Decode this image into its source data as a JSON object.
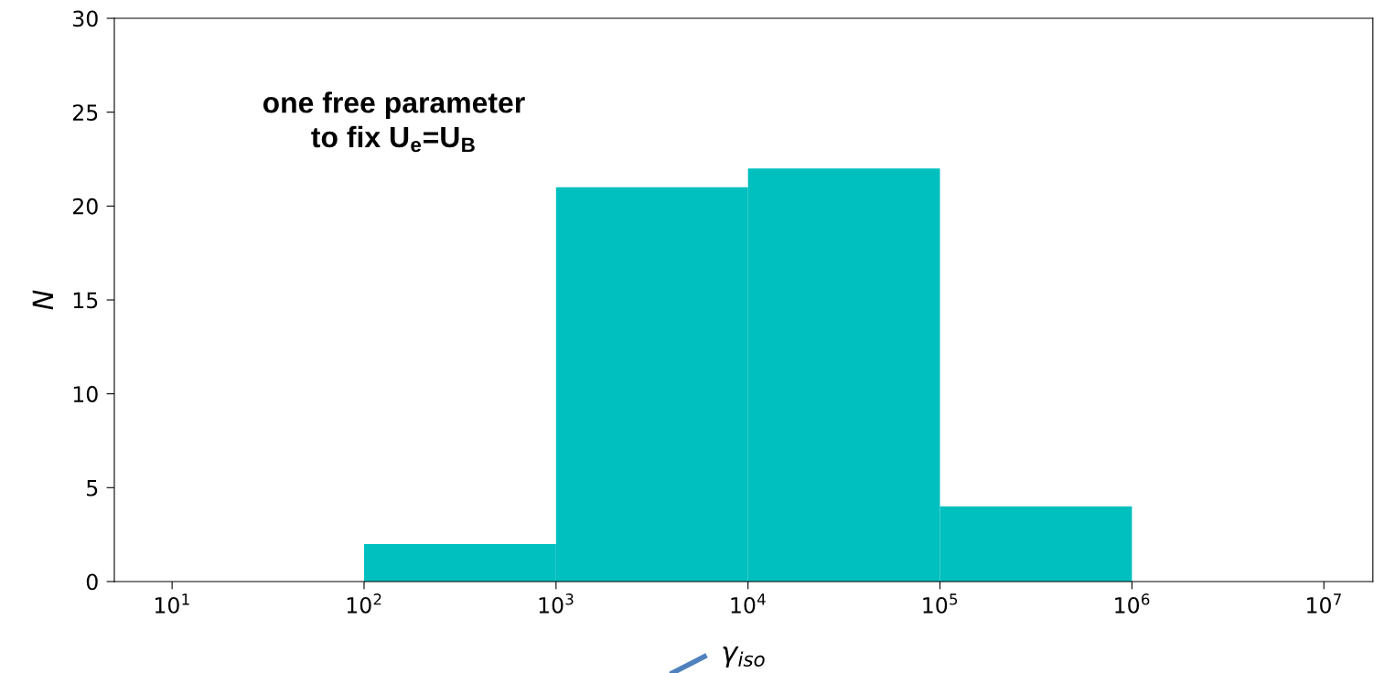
{
  "chart_data": {
    "type": "histogram",
    "bins": [
      100,
      1000,
      10000,
      100000,
      1000000
    ],
    "values": [
      2,
      21,
      22,
      4
    ],
    "color": "#00bfbf",
    "log": "x",
    "xlim": [
      5,
      18000000
    ],
    "xticks": [
      {
        "value": 10,
        "label": "10$^{1}$"
      },
      {
        "value": 100,
        "label": "10$^{2}$"
      },
      {
        "value": 1000,
        "label": "10$^{3}$"
      },
      {
        "value": 10000,
        "label": "10$^{4}$"
      },
      {
        "value": 100000,
        "label": "10$^{5}$"
      },
      {
        "value": 1000000,
        "label": "10$^{6}$"
      },
      {
        "value": 10000000,
        "label": "10$^{7}$"
      }
    ],
    "ylim": [
      0,
      30
    ],
    "yticks": [
      0,
      5,
      10,
      15,
      20,
      25,
      30
    ],
    "xlabel": "γ$_{iso}$",
    "ylabel": "N",
    "annotations": [
      "one free parameter\nto fix U$_{e}$=U$_{B}$"
    ],
    "grid": false,
    "legend": false
  }
}
